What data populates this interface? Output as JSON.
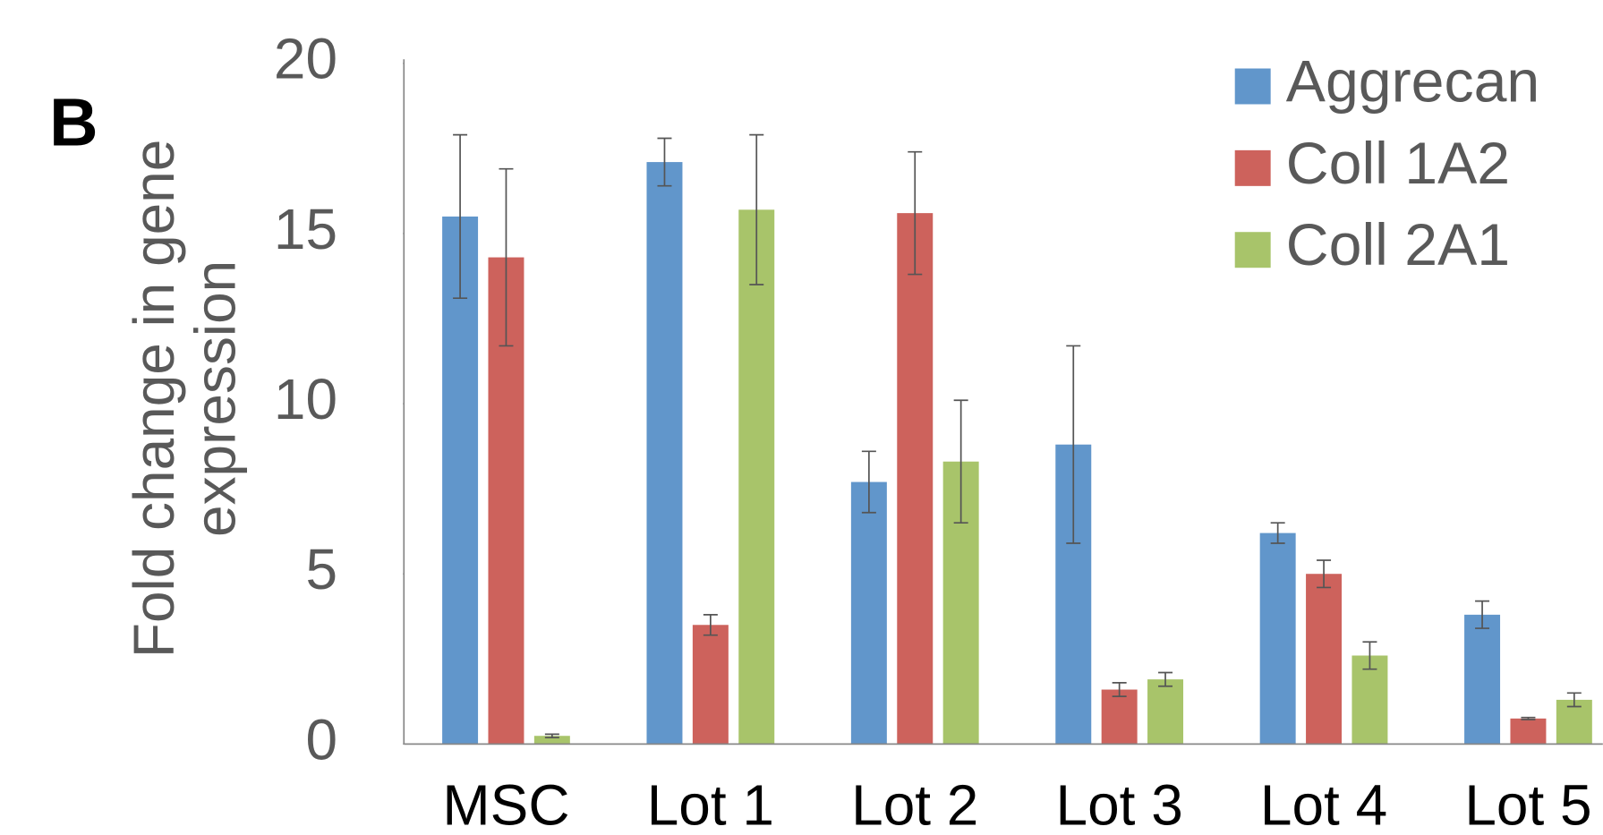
{
  "chart_data": {
    "type": "bar",
    "panel_label": "B",
    "ylabel": [
      "Fold change in gene",
      "expression"
    ],
    "categories": [
      "MSC",
      "Lot 1",
      "Lot 2",
      "Lot 3",
      "Lot 4",
      "Lot 5"
    ],
    "series": [
      {
        "name": "Aggrecan",
        "color": "#6196cb",
        "values": [
          15.5,
          17.1,
          7.7,
          8.8,
          6.2,
          3.8
        ],
        "errors": [
          2.4,
          0.7,
          0.9,
          2.9,
          0.3,
          0.4
        ]
      },
      {
        "name": "Coll 1A2",
        "color": "#cd625c",
        "values": [
          14.3,
          3.5,
          15.6,
          1.6,
          5.0,
          0.75
        ],
        "errors": [
          2.6,
          0.3,
          1.8,
          0.2,
          0.4,
          0.03
        ]
      },
      {
        "name": "Coll 2A1",
        "color": "#a8c46a",
        "values": [
          0.24,
          15.7,
          8.3,
          1.9,
          2.6,
          1.3
        ],
        "errors": [
          0.05,
          2.2,
          1.8,
          0.2,
          0.4,
          0.2
        ]
      }
    ],
    "ylim": [
      0,
      20
    ],
    "yticks": [
      0,
      5,
      10,
      15,
      20
    ],
    "legend": "top-right"
  }
}
